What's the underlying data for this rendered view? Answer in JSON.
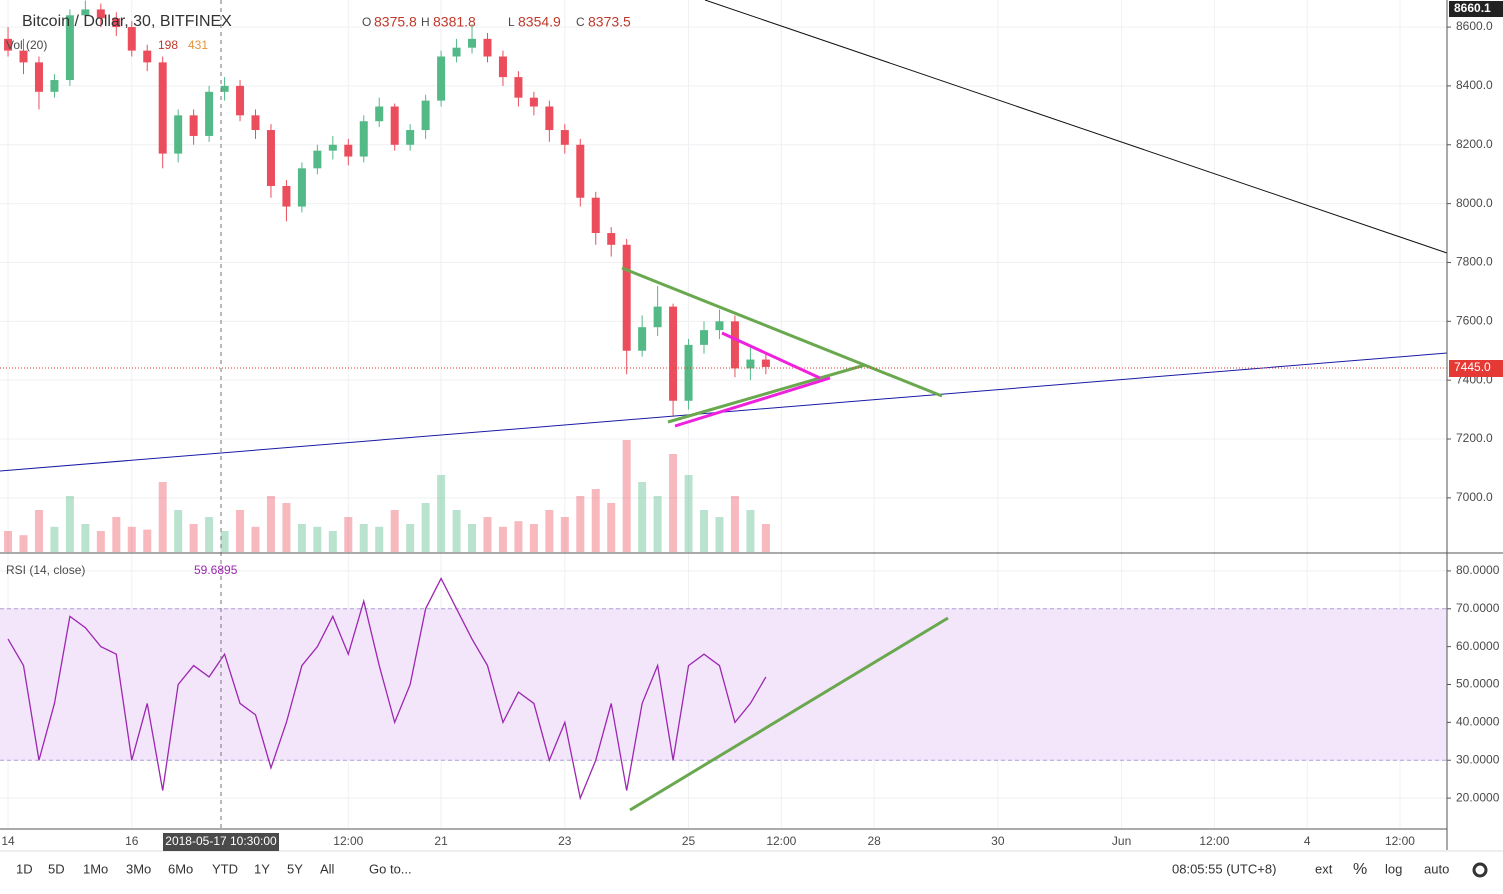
{
  "header": {
    "symbol": "Bitcoin / Dollar, 30, BITFINEX",
    "o_label": "O",
    "o": "8375.8",
    "h_label": "H",
    "h": "8381.8",
    "l_label": "L",
    "l": "8354.9",
    "c_label": "C",
    "c": "8373.5",
    "vol_title": "Vol (20)",
    "vol_value": "198",
    "vol_ma": "431",
    "top_price_label": "8660.1",
    "last_price_label": "7445.0",
    "crosshair_label": "2018-05-17 10:30:00"
  },
  "chart_data": [
    {
      "type": "candlestick",
      "x": [
        14,
        14.25,
        14.5,
        14.75,
        15,
        15.25,
        15.5,
        15.75,
        16,
        16.25,
        16.5,
        16.75,
        17,
        17.25,
        17.5,
        17.75,
        18,
        18.25,
        18.5,
        18.75,
        19,
        19.25,
        19.5,
        19.75,
        20,
        20.25,
        20.5,
        20.75,
        21,
        21.25,
        21.5,
        21.75,
        22,
        22.25,
        22.5,
        22.75,
        23,
        23.25,
        23.5,
        23.75,
        24,
        24.25,
        24.5,
        24.75,
        25,
        25.25,
        25.5,
        25.75,
        26,
        26.25
      ],
      "open": [
        8560,
        8520,
        8480,
        8380,
        8420,
        8640,
        8660,
        8630,
        8600,
        8520,
        8480,
        8170,
        8300,
        8230,
        8380,
        8400,
        8300,
        8250,
        8060,
        7990,
        8120,
        8180,
        8200,
        8160,
        8280,
        8330,
        8200,
        8250,
        8350,
        8500,
        8530,
        8560,
        8500,
        8430,
        8360,
        8330,
        8250,
        8200,
        8020,
        7900,
        7860,
        7500,
        7580,
        7650,
        7330,
        7520,
        7570,
        7600,
        7440,
        7470
      ],
      "high": [
        8600,
        8560,
        8500,
        8440,
        8660,
        8690,
        8680,
        8650,
        8620,
        8540,
        8500,
        8320,
        8320,
        8400,
        8430,
        8420,
        8320,
        8270,
        8080,
        8140,
        8200,
        8230,
        8220,
        8300,
        8360,
        8340,
        8270,
        8370,
        8520,
        8560,
        8610,
        8580,
        8520,
        8450,
        8380,
        8350,
        8270,
        8220,
        8040,
        7920,
        7880,
        7620,
        7720,
        7660,
        7540,
        7600,
        7640,
        7620,
        7520,
        7490
      ],
      "low": [
        8500,
        8440,
        8320,
        8360,
        8400,
        8610,
        8600,
        8570,
        8500,
        8450,
        8120,
        8140,
        8200,
        8210,
        8350,
        8280,
        8220,
        8020,
        7940,
        7970,
        8100,
        8150,
        8130,
        8140,
        8260,
        8180,
        8180,
        8220,
        8330,
        8480,
        8510,
        8480,
        8400,
        8330,
        8300,
        8210,
        8170,
        7990,
        7860,
        7820,
        7420,
        7480,
        7550,
        7280,
        7300,
        7490,
        7540,
        7410,
        7400,
        7420
      ],
      "close": [
        8520,
        8480,
        8380,
        8420,
        8640,
        8660,
        8630,
        8600,
        8520,
        8480,
        8170,
        8300,
        8230,
        8380,
        8400,
        8300,
        8250,
        8060,
        7990,
        8120,
        8180,
        8200,
        8160,
        8280,
        8330,
        8200,
        8250,
        8350,
        8500,
        8530,
        8560,
        8500,
        8430,
        8360,
        8330,
        8250,
        8200,
        8020,
        7900,
        7860,
        7500,
        7580,
        7650,
        7330,
        7520,
        7570,
        7600,
        7440,
        7470,
        7445
      ],
      "volume": [
        150,
        120,
        300,
        180,
        400,
        200,
        150,
        250,
        180,
        160,
        500,
        300,
        200,
        250,
        150,
        300,
        180,
        400,
        350,
        200,
        180,
        150,
        250,
        200,
        180,
        300,
        200,
        350,
        550,
        300,
        200,
        250,
        180,
        220,
        200,
        300,
        250,
        400,
        450,
        350,
        800,
        500,
        400,
        700,
        550,
        300,
        250,
        400,
        300,
        200
      ],
      "volume_ylim": [
        0,
        1000
      ],
      "up_color": "#53b987",
      "down_color": "#eb4d5c",
      "xlim": [
        13.87,
        37.26
      ],
      "xticks": [
        14,
        16,
        {
          "value": 19.5,
          "label": "12:00"
        },
        21,
        23,
        25,
        {
          "value": 26.5,
          "label": "12:00"
        },
        28,
        30,
        {
          "value": 32,
          "label": "Jun"
        },
        {
          "value": 33.5,
          "label": "12:00"
        },
        {
          "value": 35,
          "label": "4"
        },
        {
          "value": 36.5,
          "label": "12:00"
        }
      ],
      "ylim": [
        6816,
        8692
      ],
      "yticks": [
        {
          "value": 7000,
          "label": "7000.0"
        },
        {
          "value": 7200,
          "label": "7200.0"
        },
        {
          "value": 7400,
          "label": "7400.0"
        },
        {
          "value": 7600,
          "label": "7600.0"
        },
        {
          "value": 7800,
          "label": "7800.0"
        },
        {
          "value": 8000,
          "label": "8000.0"
        },
        {
          "value": 8200,
          "label": "8200.0"
        },
        {
          "value": 8400,
          "label": "8400.0"
        },
        {
          "value": 8600,
          "label": "8600.0"
        }
      ],
      "grid": true
    },
    {
      "type": "line",
      "title": "RSI (14, close)",
      "value_label": "59.6895",
      "color": "#9c27b0",
      "x": [
        14,
        14.25,
        14.5,
        14.75,
        15,
        15.25,
        15.5,
        15.75,
        16,
        16.25,
        16.5,
        16.75,
        17,
        17.25,
        17.5,
        17.75,
        18,
        18.25,
        18.5,
        18.75,
        19,
        19.25,
        19.5,
        19.75,
        20,
        20.25,
        20.5,
        20.75,
        21,
        21.25,
        21.5,
        21.75,
        22,
        22.25,
        22.5,
        22.75,
        23,
        23.25,
        23.5,
        23.75,
        24,
        24.25,
        24.5,
        24.75,
        25,
        25.25,
        25.5,
        25.75,
        26,
        26.25
      ],
      "values": [
        62,
        55,
        30,
        45,
        68,
        65,
        60,
        58,
        30,
        45,
        22,
        50,
        55,
        52,
        58,
        45,
        42,
        28,
        40,
        55,
        60,
        68,
        58,
        72,
        55,
        40,
        50,
        70,
        78,
        70,
        62,
        55,
        40,
        48,
        45,
        30,
        40,
        20,
        30,
        45,
        22,
        45,
        55,
        30,
        55,
        58,
        55,
        40,
        45,
        52
      ],
      "band": [
        30,
        70
      ],
      "ylim": [
        12.1,
        84.2
      ],
      "yticks": [
        {
          "value": 20,
          "label": "20.0000"
        },
        {
          "value": 30,
          "label": "30.0000"
        },
        {
          "value": 40,
          "label": "40.0000"
        },
        {
          "value": 50,
          "label": "50.0000"
        },
        {
          "value": 60,
          "label": "60.0000"
        },
        {
          "value": 70,
          "label": "70.0000"
        },
        {
          "value": 80,
          "label": "80.0000"
        }
      ],
      "grid": true
    }
  ],
  "toolbar": {
    "ranges": [
      "1D",
      "5D",
      "1Mo",
      "3Mo",
      "6Mo",
      "YTD",
      "1Y",
      "5Y",
      "All"
    ],
    "goto": "Go to...",
    "clock": "08:05:55 (UTC+8)",
    "ext": "ext",
    "percent": "%",
    "log": "log",
    "auto": "auto"
  }
}
